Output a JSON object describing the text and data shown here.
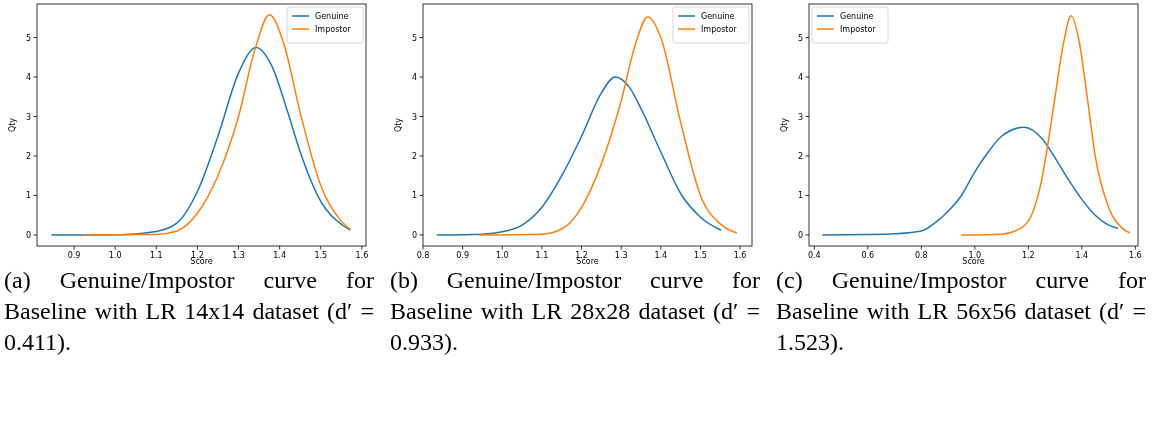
{
  "chart_data": [
    {
      "type": "line",
      "title": "(a) Genuine/Impostor curve for Baseline with LR 14x14 dataset (d′ = 0.411).",
      "xlabel": "Score",
      "ylabel": "Qty",
      "xlim": [
        0.81,
        1.61
      ],
      "xticks": [
        {
          "value": 0.9,
          "label": "0.9"
        },
        {
          "value": 1.0,
          "label": "1.0"
        },
        {
          "value": 1.1,
          "label": "1.1"
        },
        {
          "value": 1.2,
          "label": "1.2"
        },
        {
          "value": 1.3,
          "label": "1.3"
        },
        {
          "value": 1.4,
          "label": "1.4"
        },
        {
          "value": 1.5,
          "label": "1.5"
        },
        {
          "value": 1.6,
          "label": "1.6"
        }
      ],
      "ylim": [
        -0.28,
        5.85
      ],
      "yticks": [
        0,
        1,
        2,
        3,
        4,
        5
      ],
      "legend": "top right",
      "series": [
        {
          "name": "Genuine",
          "color": "#1f77b4",
          "x": [
            0.845,
            1.0,
            1.1,
            1.15,
            1.2,
            1.25,
            1.3,
            1.343,
            1.38,
            1.42,
            1.45,
            1.5,
            1.55,
            1.572
          ],
          "values": [
            0,
            0,
            0.09,
            0.3,
            1.1,
            2.5,
            4.1,
            4.75,
            4.3,
            3.1,
            2.1,
            0.85,
            0.27,
            0.12
          ]
        },
        {
          "name": "Impostor",
          "color": "#ff7f0e",
          "x": [
            0.922,
            1.1,
            1.15,
            1.2,
            1.25,
            1.3,
            1.34,
            1.375,
            1.41,
            1.45,
            1.5,
            1.55,
            1.572
          ],
          "values": [
            0,
            0.01,
            0.1,
            0.55,
            1.5,
            3.0,
            4.7,
            5.58,
            4.85,
            3.1,
            1.25,
            0.35,
            0.14
          ]
        }
      ]
    },
    {
      "type": "line",
      "title": "(b) Genuine/Impostor curve for Baseline with LR 28x28 dataset (d′ = 0.933).",
      "xlabel": "Score",
      "ylabel": "Qty",
      "xlim": [
        0.8,
        1.63
      ],
      "xticks": [
        {
          "value": 0.8,
          "label": "0.8"
        },
        {
          "value": 0.9,
          "label": "0.9"
        },
        {
          "value": 1.0,
          "label": "1.0"
        },
        {
          "value": 1.1,
          "label": "1.1"
        },
        {
          "value": 1.2,
          "label": "1.2"
        },
        {
          "value": 1.3,
          "label": "1.3"
        },
        {
          "value": 1.4,
          "label": "1.4"
        },
        {
          "value": 1.5,
          "label": "1.5"
        },
        {
          "value": 1.6,
          "label": "1.6"
        }
      ],
      "ylim": [
        -0.28,
        5.85
      ],
      "yticks": [
        0,
        1,
        2,
        3,
        4,
        5
      ],
      "legend": "top right",
      "series": [
        {
          "name": "Genuine",
          "color": "#1f77b4",
          "x": [
            0.835,
            0.95,
            1.0,
            1.05,
            1.1,
            1.15,
            1.2,
            1.25,
            1.285,
            1.32,
            1.35,
            1.4,
            1.45,
            1.5,
            1.552
          ],
          "values": [
            0,
            0.02,
            0.08,
            0.25,
            0.7,
            1.5,
            2.5,
            3.6,
            4.0,
            3.75,
            3.2,
            2.1,
            1.05,
            0.45,
            0.12
          ]
        },
        {
          "name": "Impostor",
          "color": "#ff7f0e",
          "x": [
            0.94,
            1.1,
            1.15,
            1.2,
            1.25,
            1.3,
            1.335,
            1.367,
            1.4,
            1.45,
            1.5,
            1.55,
            1.592
          ],
          "values": [
            0,
            0.02,
            0.15,
            0.7,
            1.8,
            3.4,
            4.8,
            5.52,
            5.0,
            2.85,
            1.0,
            0.28,
            0.05
          ]
        }
      ]
    },
    {
      "type": "line",
      "title": "(c) Genuine/Impostor curve for Baseline with LR 56x56 dataset (d′ = 1.523).",
      "xlabel": "Score",
      "ylabel": "Qty",
      "xlim": [
        0.38,
        1.61
      ],
      "xticks": [
        {
          "value": 0.4,
          "label": "0.4"
        },
        {
          "value": 0.6,
          "label": "0.6"
        },
        {
          "value": 0.8,
          "label": "0.8"
        },
        {
          "value": 1.0,
          "label": "1.0"
        },
        {
          "value": 1.2,
          "label": "1.2"
        },
        {
          "value": 1.4,
          "label": "1.4"
        },
        {
          "value": 1.6,
          "label": "1.6"
        }
      ],
      "ylim": [
        -0.28,
        5.85
      ],
      "yticks": [
        0,
        1,
        2,
        3,
        4,
        5
      ],
      "legend": "top left",
      "series": [
        {
          "name": "Genuine",
          "color": "#1f77b4",
          "x": [
            0.43,
            0.6,
            0.7,
            0.8,
            0.85,
            0.9,
            0.95,
            1.0,
            1.05,
            1.1,
            1.185,
            1.25,
            1.3,
            1.35,
            1.4,
            1.45,
            1.5,
            1.535
          ],
          "values": [
            0,
            0.01,
            0.03,
            0.1,
            0.3,
            0.6,
            1.0,
            1.6,
            2.1,
            2.5,
            2.73,
            2.45,
            1.95,
            1.4,
            0.9,
            0.5,
            0.25,
            0.17
          ]
        },
        {
          "name": "Impostor",
          "color": "#ff7f0e",
          "x": [
            0.95,
            1.1,
            1.15,
            1.2,
            1.25,
            1.28,
            1.3,
            1.33,
            1.36,
            1.39,
            1.42,
            1.45,
            1.5,
            1.55,
            1.58
          ],
          "values": [
            0,
            0.02,
            0.1,
            0.35,
            1.4,
            2.6,
            3.5,
            4.8,
            5.55,
            4.9,
            3.5,
            2.0,
            0.7,
            0.18,
            0.05
          ]
        }
      ]
    }
  ]
}
